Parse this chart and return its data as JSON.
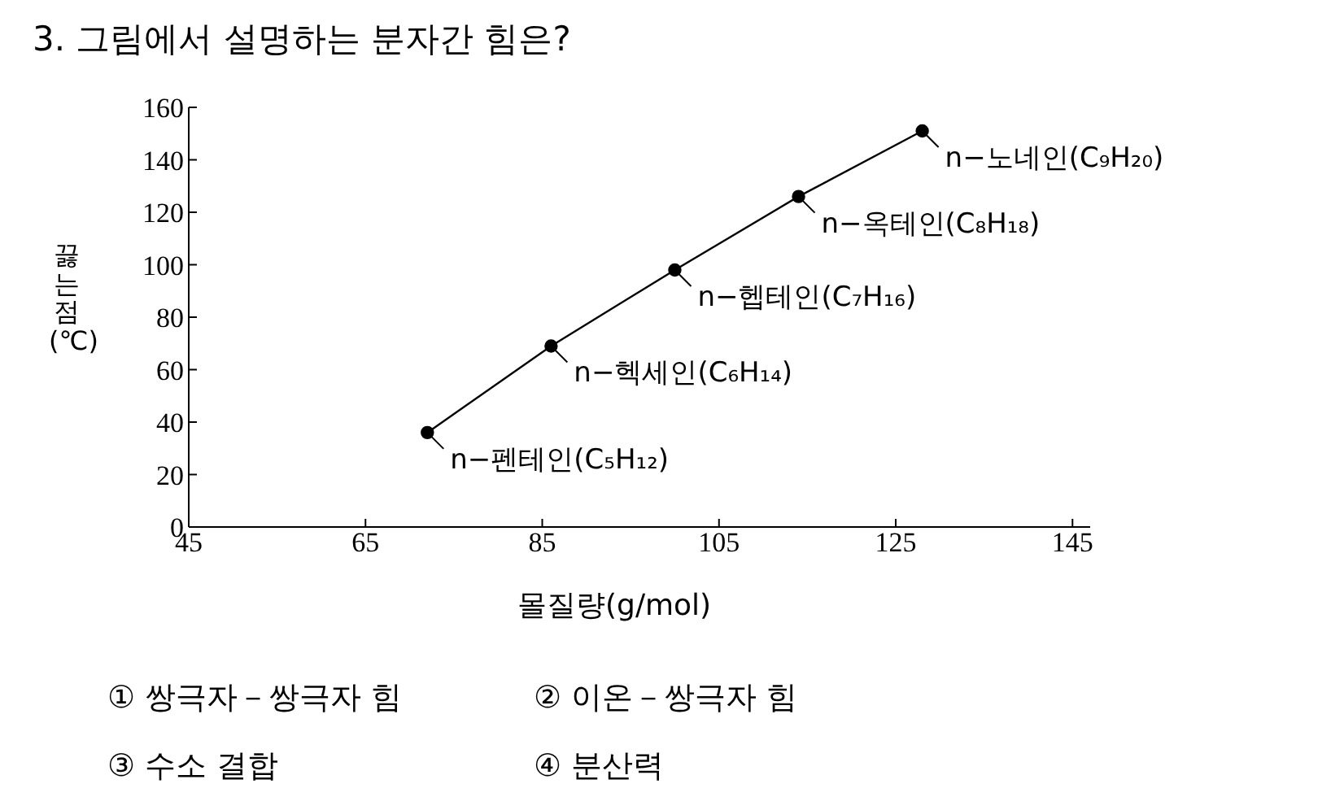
{
  "chart_data": {
    "type": "line",
    "title": "3. 그림에서 설명하는 분자간 힘은?",
    "xlabel": "몰질량(g/mol)",
    "ylabel": "끓는점(℃)",
    "x": [
      72,
      86,
      100,
      114,
      128
    ],
    "series": [
      {
        "color": "#000000",
        "values": [
          36,
          69,
          98,
          126,
          151
        ]
      }
    ],
    "xlim": [
      45,
      147
    ],
    "xticks": [
      45,
      65,
      85,
      105,
      125,
      145
    ],
    "ylim": [
      0,
      160
    ],
    "yticks": [
      0,
      20,
      40,
      60,
      80,
      100,
      120,
      140,
      160
    ],
    "grid": false,
    "legend": false,
    "marker": "circle",
    "line_style": "solid",
    "annotations": [
      {
        "text": "n−펜테인(C₅H₁₂)",
        "x": 72,
        "y": 36
      },
      {
        "text": "n−헥세인(C₆H₁₄)",
        "x": 86,
        "y": 69
      },
      {
        "text": "n−헵테인(C₇H₁₆)",
        "x": 100,
        "y": 98
      },
      {
        "text": "n−옥테인(C₈H₁₈)",
        "x": 114,
        "y": 126
      },
      {
        "text": "n−노네인(C₉H₂₀)",
        "x": 128,
        "y": 151
      },
      "① 쌍극자－쌍극자 힘",
      "② 이온－쌍극자 힘",
      "③ 수소 결합",
      "④ 분산력"
    ]
  }
}
